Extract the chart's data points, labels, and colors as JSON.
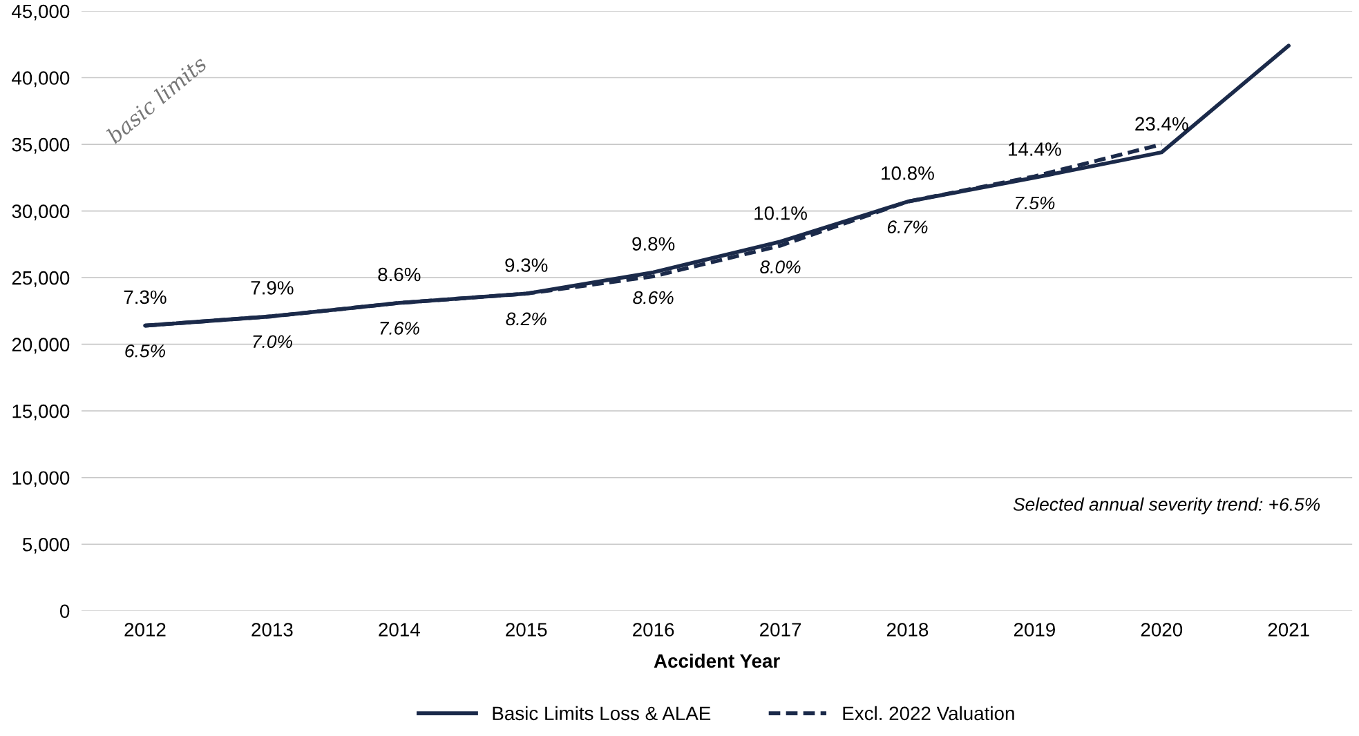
{
  "chart_data": {
    "type": "line",
    "xlabel": "Accident Year",
    "categories": [
      "2012",
      "2013",
      "2014",
      "2015",
      "2016",
      "2017",
      "2018",
      "2019",
      "2020",
      "2021"
    ],
    "series": [
      {
        "name": "Basic Limits Loss & ALAE",
        "color": "#1b2a4a",
        "line_style": "solid",
        "values": [
          21400,
          22100,
          23100,
          23800,
          25400,
          27700,
          30700,
          32500,
          34400,
          42400
        ]
      },
      {
        "name": "Excl. 2022 Valuation",
        "color": "#1b2a4a",
        "line_style": "dashed",
        "values": [
          21400,
          22100,
          23100,
          23800,
          25100,
          27400,
          30700,
          32600,
          35000,
          null
        ]
      }
    ],
    "ylim": [
      0,
      45000
    ],
    "yticks": [
      {
        "value": 0,
        "label": "0"
      },
      {
        "value": 5000,
        "label": "5,000"
      },
      {
        "value": 10000,
        "label": "10,000"
      },
      {
        "value": 15000,
        "label": "15,000"
      },
      {
        "value": 20000,
        "label": "20,000"
      },
      {
        "value": 25000,
        "label": "25,000"
      },
      {
        "value": 30000,
        "label": "30,000"
      },
      {
        "value": 35000,
        "label": "35,000"
      },
      {
        "value": 40000,
        "label": "40,000"
      },
      {
        "value": 45000,
        "label": "45,000"
      }
    ],
    "grid": "y",
    "legend": "bottom",
    "marker": "none",
    "annotations": [
      "Selected annual severity trend: +6.5%",
      "basic limits",
      {
        "text": "7.3%",
        "x": "2012",
        "y": 21400
      },
      {
        "text": "7.9%",
        "x": "2013",
        "y": 22100
      },
      {
        "text": "8.6%",
        "x": "2014",
        "y": 23100
      },
      {
        "text": "9.3%",
        "x": "2015",
        "y": 23800
      },
      {
        "text": "9.8%",
        "x": "2016",
        "y": 25400
      },
      {
        "text": "10.1%",
        "x": "2017",
        "y": 27700
      },
      {
        "text": "10.8%",
        "x": "2018",
        "y": 30700
      },
      {
        "text": "14.4%",
        "x": "2019",
        "y": 32500
      },
      {
        "text": "23.4%",
        "x": "2020",
        "y": 34400
      },
      {
        "text": "6.5%",
        "x": "2012",
        "y": 21400
      },
      {
        "text": "7.0%",
        "x": "2013",
        "y": 22100
      },
      {
        "text": "7.6%",
        "x": "2014",
        "y": 23100
      },
      {
        "text": "8.2%",
        "x": "2015",
        "y": 23800
      },
      {
        "text": "8.6%",
        "x": "2016",
        "y": 25400
      },
      {
        "text": "8.0%",
        "x": "2017",
        "y": 27700
      },
      {
        "text": "6.7%",
        "x": "2018",
        "y": 30700
      },
      {
        "text": "7.5%",
        "x": "2019",
        "y": 32500
      }
    ]
  }
}
